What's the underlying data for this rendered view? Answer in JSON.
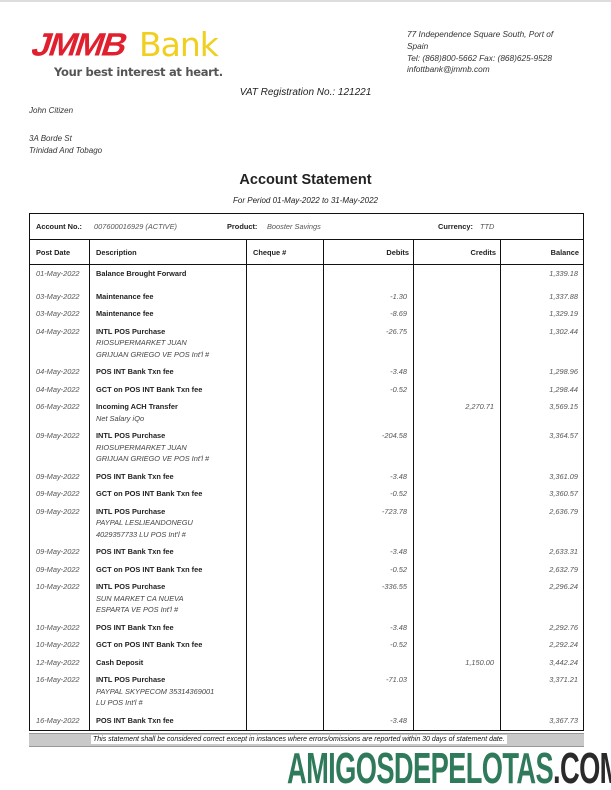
{
  "bank": {
    "logo_text": "JMMB Bank",
    "logo_red": "JMMB",
    "logo_yellow": "Bank",
    "tagline": "Your best interest at heart.",
    "colors": {
      "red": "#e0202e",
      "yellow": "#f0cf1f"
    }
  },
  "address": [
    "77 Independence Square South, Port of",
    "Spain",
    "Tel: (868)800-5662 Fax: (868)625-9528",
    "infottbank@jmmb.com"
  ],
  "vat": "VAT Registration No.: 121221",
  "customer": {
    "name": "John Citizen",
    "address": [
      "3A Borde St",
      "Trinidad And Tobago"
    ]
  },
  "title": "Account Statement",
  "period": "For Period 01-May-2022 to 31-May-2022",
  "account": {
    "no_label": "Account No.:",
    "no": "007600016929 (ACTIVE)",
    "product_label": "Product:",
    "product": "Booster Savings",
    "currency_label": "Currency:",
    "currency": "TTD"
  },
  "columns": [
    "Post Date",
    "Description",
    "Cheque #",
    "Debits",
    "Credits",
    "Balance"
  ],
  "rows": [
    {
      "date": "01-May-2022",
      "title": "Balance Brought Forward",
      "sub": [],
      "debit": "",
      "credit": "",
      "balance": "1,339.18"
    },
    {
      "date": "03-May-2022",
      "title": "Maintenance fee",
      "sub": [],
      "debit": "-1.30",
      "credit": "",
      "balance": "1,337.88"
    },
    {
      "date": "03-May-2022",
      "title": "Maintenance fee",
      "sub": [],
      "debit": "-8.69",
      "credit": "",
      "balance": "1,329.19"
    },
    {
      "date": "04-May-2022",
      "title": "INTL POS Purchase",
      "sub": [
        "RIOSUPERMARKET JUAN",
        "GRIJUAN GRIEGO VE POS Int'l #"
      ],
      "debit": "-26.75",
      "credit": "",
      "balance": "1,302.44"
    },
    {
      "date": "04-May-2022",
      "title": "POS INT Bank Txn fee",
      "sub": [],
      "debit": "-3.48",
      "credit": "",
      "balance": "1,298.96"
    },
    {
      "date": "04-May-2022",
      "title": "GCT on POS INT Bank Txn fee",
      "sub": [],
      "debit": "-0.52",
      "credit": "",
      "balance": "1,298.44"
    },
    {
      "date": "06-May-2022",
      "title": "Incoming ACH Transfer",
      "sub": [
        "Net Salary iQo"
      ],
      "debit": "",
      "credit": "2,270.71",
      "balance": "3,569.15"
    },
    {
      "date": "09-May-2022",
      "title": "INTL POS Purchase",
      "sub": [
        "RIOSUPERMARKET JUAN",
        "GRIJUAN GRIEGO VE POS Int'l #"
      ],
      "debit": "-204.58",
      "credit": "",
      "balance": "3,364.57"
    },
    {
      "date": "09-May-2022",
      "title": "POS INT Bank Txn fee",
      "sub": [],
      "debit": "-3.48",
      "credit": "",
      "balance": "3,361.09"
    },
    {
      "date": "09-May-2022",
      "title": "GCT on POS INT Bank Txn fee",
      "sub": [],
      "debit": "-0.52",
      "credit": "",
      "balance": "3,360.57"
    },
    {
      "date": "09-May-2022",
      "title": "INTL POS Purchase",
      "sub": [
        "PAYPAL LESLIEANDONEGU",
        "4029357733 LU POS Int'l #"
      ],
      "debit": "-723.78",
      "credit": "",
      "balance": "2,636.79"
    },
    {
      "date": "09-May-2022",
      "title": "POS INT Bank Txn fee",
      "sub": [],
      "debit": "-3.48",
      "credit": "",
      "balance": "2,633.31"
    },
    {
      "date": "09-May-2022",
      "title": "GCT on POS INT Bank Txn fee",
      "sub": [],
      "debit": "-0.52",
      "credit": "",
      "balance": "2,632.79"
    },
    {
      "date": "10-May-2022",
      "title": "INTL POS Purchase",
      "sub": [
        "SUN MARKET CA NUEVA",
        "ESPARTA VE POS Int'l #"
      ],
      "debit": "-336.55",
      "credit": "",
      "balance": "2,296.24"
    },
    {
      "date": "10-May-2022",
      "title": "POS INT Bank Txn fee",
      "sub": [],
      "debit": "-3.48",
      "credit": "",
      "balance": "2,292.76"
    },
    {
      "date": "10-May-2022",
      "title": "GCT on POS INT Bank Txn fee",
      "sub": [],
      "debit": "-0.52",
      "credit": "",
      "balance": "2,292.24"
    },
    {
      "date": "12-May-2022",
      "title": "Cash Deposit",
      "sub": [],
      "debit": "",
      "credit": "1,150.00",
      "balance": "3,442.24"
    },
    {
      "date": "16-May-2022",
      "title": "INTL POS Purchase",
      "sub": [
        "PAYPAL SKYPECOM 35314369001",
        "LU POS Int'l #"
      ],
      "debit": "-71.03",
      "credit": "",
      "balance": "3,371.21"
    },
    {
      "date": "16-May-2022",
      "title": "POS INT Bank Txn fee",
      "sub": [],
      "debit": "-3.48",
      "credit": "",
      "balance": "3,367.73"
    }
  ],
  "footer": "This statement shall be considered correct except in instances where errors/omissions are reported within 30 days of statement date.",
  "watermark": {
    "green": "AMIGOSDEPELOTAS",
    "dark": ".COM",
    "color": "#2f7a5a"
  }
}
